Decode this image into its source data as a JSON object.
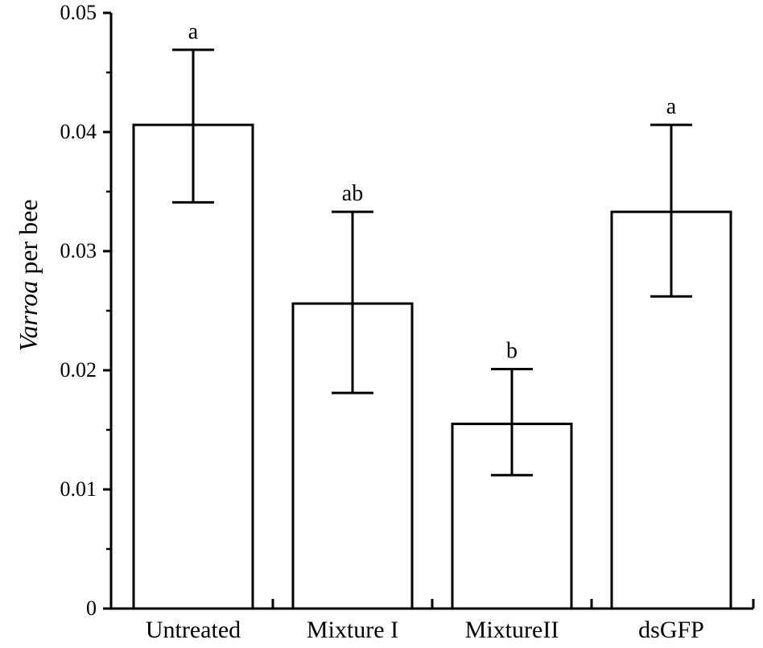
{
  "chart_data": {
    "type": "bar",
    "categories": [
      "Untreated",
      "Mixture I",
      "MixtureII",
      "dsGFP"
    ],
    "values": [
      0.0406,
      0.0256,
      0.0155,
      0.0333
    ],
    "error_upper": [
      0.0469,
      0.0333,
      0.0201,
      0.0406
    ],
    "error_lower": [
      0.0341,
      0.0181,
      0.0112,
      0.0262
    ],
    "significance_labels": [
      "a",
      "ab",
      "b",
      "a"
    ],
    "ylabel_italic": "Varroa",
    "ylabel_rest": " per bee",
    "xlabel": "",
    "title": "",
    "ylim": [
      0,
      0.05
    ],
    "yticks": [
      "0",
      "0.01",
      "0.02",
      "0.03",
      "0.04",
      "0.05"
    ],
    "y_tick_values": [
      0,
      0.01,
      0.02,
      0.03,
      0.04,
      0.05
    ],
    "y_minor_tick_values": [
      0.005,
      0.015,
      0.025,
      0.035,
      0.045
    ],
    "grid": false,
    "legend": "none",
    "bar_fill": "#ffffff",
    "bar_stroke": "#000000"
  }
}
